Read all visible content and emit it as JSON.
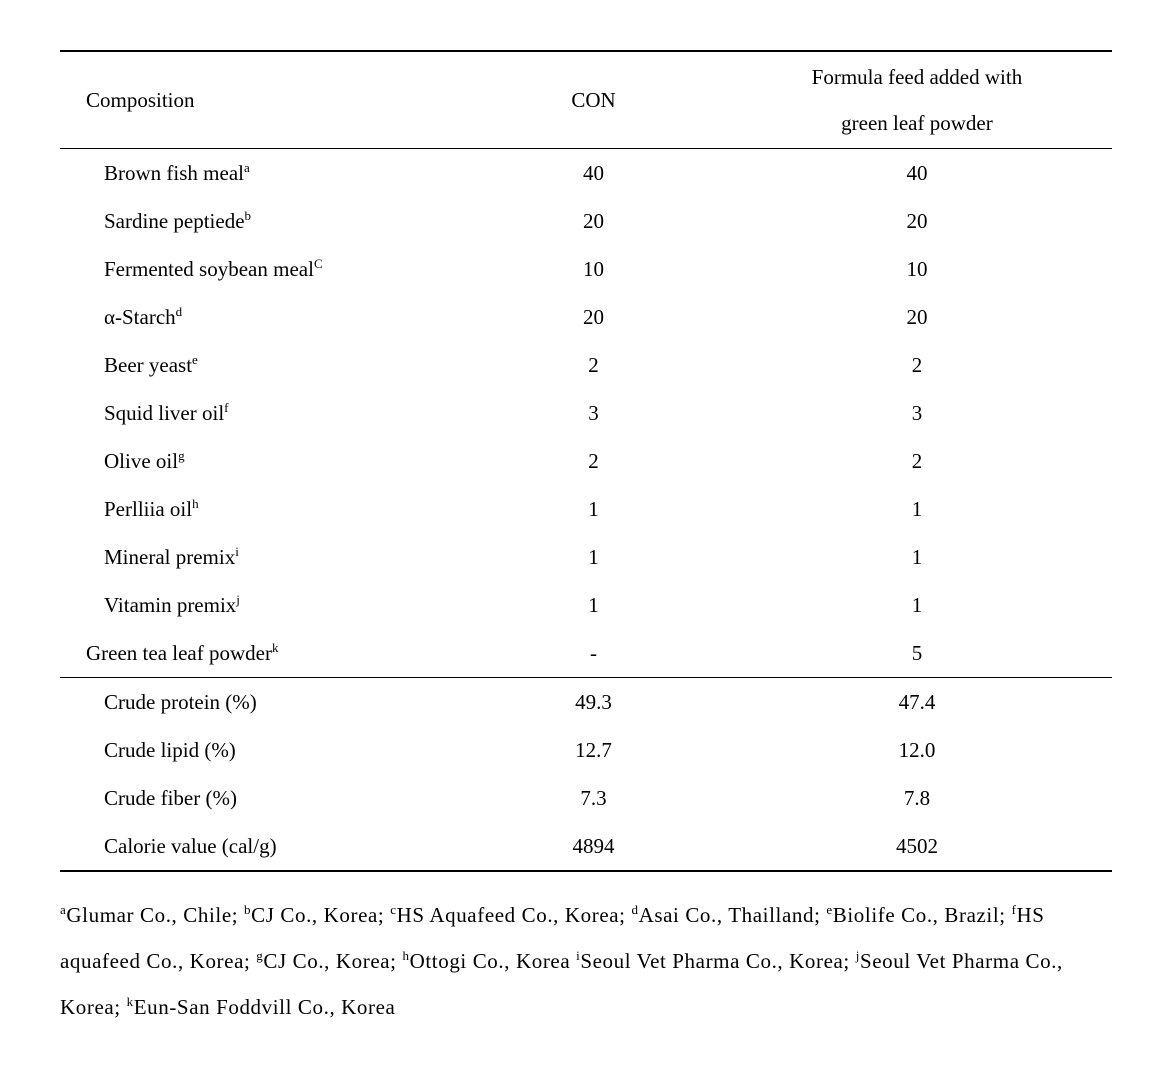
{
  "header": {
    "col_label": "Composition",
    "col_con": "CON",
    "col_green_l1": "Formula feed added with",
    "col_green_l2": "green leaf powder"
  },
  "ingredients": [
    {
      "name": "Brown fish meal",
      "sup": "a",
      "con": "40",
      "green": "40"
    },
    {
      "name": "Sardine peptiede",
      "sup": "b",
      "con": "20",
      "green": "20"
    },
    {
      "name": "Fermented soybean meal",
      "sup": "C",
      "con": "10",
      "green": "10"
    },
    {
      "name": "α-Starch",
      "sup": "d",
      "con": "20",
      "green": "20"
    },
    {
      "name": "Beer yeast",
      "sup": "e",
      "con": "2",
      "green": "2"
    },
    {
      "name": "Squid liver oil",
      "sup": "f",
      "con": "3",
      "green": "3"
    },
    {
      "name": "Olive oil",
      "sup": "g",
      "con": "2",
      "green": "2"
    },
    {
      "name": "Perlliia oil",
      "sup": "h",
      "con": "1",
      "green": "1"
    },
    {
      "name": "Mineral premix",
      "sup": "i",
      "con": "1",
      "green": "1"
    },
    {
      "name": "Vitamin premix",
      "sup": "j",
      "con": "1",
      "green": "1"
    },
    {
      "name": "Green tea leaf powder",
      "sup": "k",
      "con": "-",
      "green": "5",
      "no_indent": true
    }
  ],
  "analysis": [
    {
      "name": "Crude protein (%)",
      "con": "49.3",
      "green": "47.4"
    },
    {
      "name": "Crude lipid (%)",
      "con": "12.7",
      "green": "12.0"
    },
    {
      "name": "Crude fiber (%)",
      "con": "7.3",
      "green": "7.8"
    },
    {
      "name": "Calorie value (cal/g)",
      "con": "4894",
      "green": "4502"
    }
  ],
  "footnotes": [
    {
      "sup": "a",
      "text": "Glumar Co., Chile; "
    },
    {
      "sup": "b",
      "text": "CJ Co., Korea; "
    },
    {
      "sup": "c",
      "text": "HS Aquafeed Co., Korea; "
    },
    {
      "sup": "d",
      "text": "Asai Co., Thailland; "
    },
    {
      "sup": "e",
      "text": "Biolife Co., Brazil; "
    },
    {
      "sup": "f",
      "text": "HS aquafeed Co., Korea; "
    },
    {
      "sup": "g",
      "text": "CJ Co., Korea; "
    },
    {
      "sup": "h",
      "text": "Ottogi Co., Korea "
    },
    {
      "sup": "i",
      "text": "Seoul Vet Pharma Co., Korea; "
    },
    {
      "sup": "j",
      "text": "Seoul Vet Pharma Co., Korea; "
    },
    {
      "sup": "k",
      "text": "Eun-San Foddvill Co., Korea"
    }
  ]
}
